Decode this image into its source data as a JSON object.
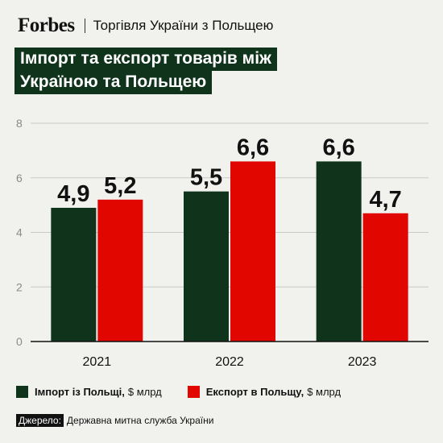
{
  "header": {
    "logo": "Forbes",
    "subtitle": "Торгівля України з Польщею"
  },
  "title_lines": [
    "Імпорт та експорт товарів між",
    "Україною та Польщею"
  ],
  "colors": {
    "import": "#10331c",
    "export": "#e10600",
    "title_bg": "#10331c",
    "background": "#f1f1ee"
  },
  "legend": {
    "items": [
      {
        "name": "Імпорт із Польщі,",
        "unit": "$ млрд"
      },
      {
        "name": "Експорт в Польщу,",
        "unit": "$ млрд"
      }
    ]
  },
  "source": {
    "label": "Джерело:",
    "text": "Державна митна служба України"
  },
  "chart_data": {
    "type": "bar",
    "categories": [
      "2021",
      "2022",
      "2023"
    ],
    "series": [
      {
        "name": "Імпорт із Польщі, $ млрд",
        "values": [
          4.9,
          5.5,
          6.6
        ],
        "labels": [
          "4,9",
          "5,5",
          "6,6"
        ]
      },
      {
        "name": "Експорт в Польщу, $ млрд",
        "values": [
          5.2,
          6.6,
          4.7
        ],
        "labels": [
          "5,2",
          "6,6",
          "4,7"
        ]
      }
    ],
    "ylim": [
      0,
      8
    ],
    "yticks": [
      "0",
      "2",
      "4",
      "6",
      "8"
    ],
    "grid": true,
    "legend": "bottom"
  }
}
